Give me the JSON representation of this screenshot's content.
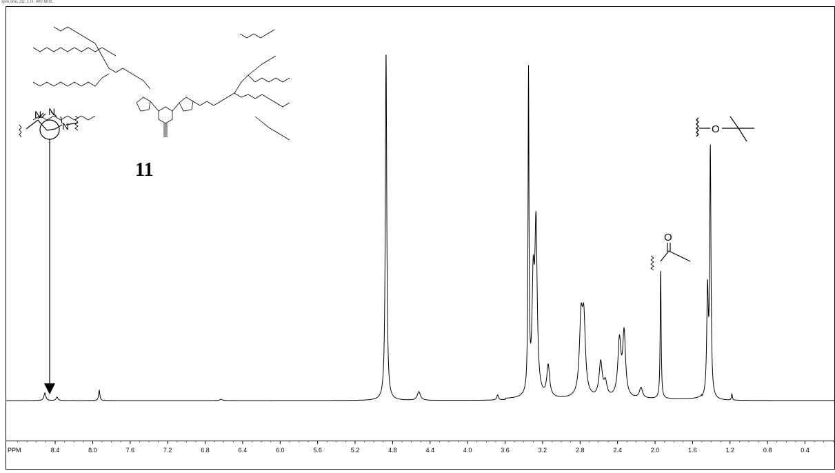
{
  "header": "spin.one. 2D. 1 H. 400 MHz",
  "chart_data": {
    "type": "line",
    "title": "",
    "xlabel": "PPM",
    "ylabel": "",
    "xlim": [
      8.93,
      0.08
    ],
    "x_reversed": true,
    "grid": false,
    "legend": "none",
    "ticks": [
      "8.4",
      "8.0",
      "7.6",
      "7.2",
      "6.8",
      "6.4",
      "6.0",
      "5.6",
      "5.2",
      "4.8",
      "4.4",
      "4.0",
      "3.6",
      "3.2",
      "2.8",
      "2.4",
      "2.0",
      "1.6",
      "1.2",
      "0.8",
      "0.4"
    ],
    "tick_values": [
      8.4,
      8.0,
      7.6,
      7.2,
      6.8,
      6.4,
      6.0,
      5.6,
      5.2,
      4.8,
      4.4,
      4.0,
      3.6,
      3.2,
      2.8,
      2.4,
      2.0,
      1.6,
      1.2,
      0.8,
      0.4
    ],
    "peaks": [
      {
        "ppm": 8.51,
        "height": 0.022,
        "width": 0.012
      },
      {
        "ppm": 8.38,
        "height": 0.01,
        "width": 0.012
      },
      {
        "ppm": 7.93,
        "height": 0.03,
        "width": 0.008
      },
      {
        "ppm": 6.63,
        "height": 0.004,
        "width": 0.015
      },
      {
        "ppm": 4.87,
        "height": 1.0,
        "width": 0.009
      },
      {
        "ppm": 4.52,
        "height": 0.025,
        "width": 0.02
      },
      {
        "ppm": 3.68,
        "height": 0.015,
        "width": 0.01
      },
      {
        "ppm": 3.35,
        "height": 0.915,
        "width": 0.006
      },
      {
        "ppm": 3.3,
        "height": 0.3,
        "width": 0.015
      },
      {
        "ppm": 3.27,
        "height": 0.47,
        "width": 0.015
      },
      {
        "ppm": 3.14,
        "height": 0.09,
        "width": 0.018
      },
      {
        "ppm": 2.79,
        "height": 0.205,
        "width": 0.02
      },
      {
        "ppm": 2.76,
        "height": 0.205,
        "width": 0.02
      },
      {
        "ppm": 2.58,
        "height": 0.1,
        "width": 0.02
      },
      {
        "ppm": 2.53,
        "height": 0.04,
        "width": 0.02
      },
      {
        "ppm": 2.38,
        "height": 0.16,
        "width": 0.02
      },
      {
        "ppm": 2.33,
        "height": 0.18,
        "width": 0.018
      },
      {
        "ppm": 2.15,
        "height": 0.03,
        "width": 0.02
      },
      {
        "ppm": 1.94,
        "height": 0.37,
        "width": 0.006
      },
      {
        "ppm": 1.41,
        "height": 0.705,
        "width": 0.008
      },
      {
        "ppm": 1.44,
        "height": 0.3,
        "width": 0.01
      },
      {
        "ppm": 1.18,
        "height": 0.018,
        "width": 0.006
      }
    ]
  },
  "annotations": {
    "compound_label": "11",
    "triazole_atoms": {
      "n1": "N",
      "n2": "N",
      "n3": "N"
    },
    "acetyl_atom": "O",
    "tbu_atom": "O"
  }
}
